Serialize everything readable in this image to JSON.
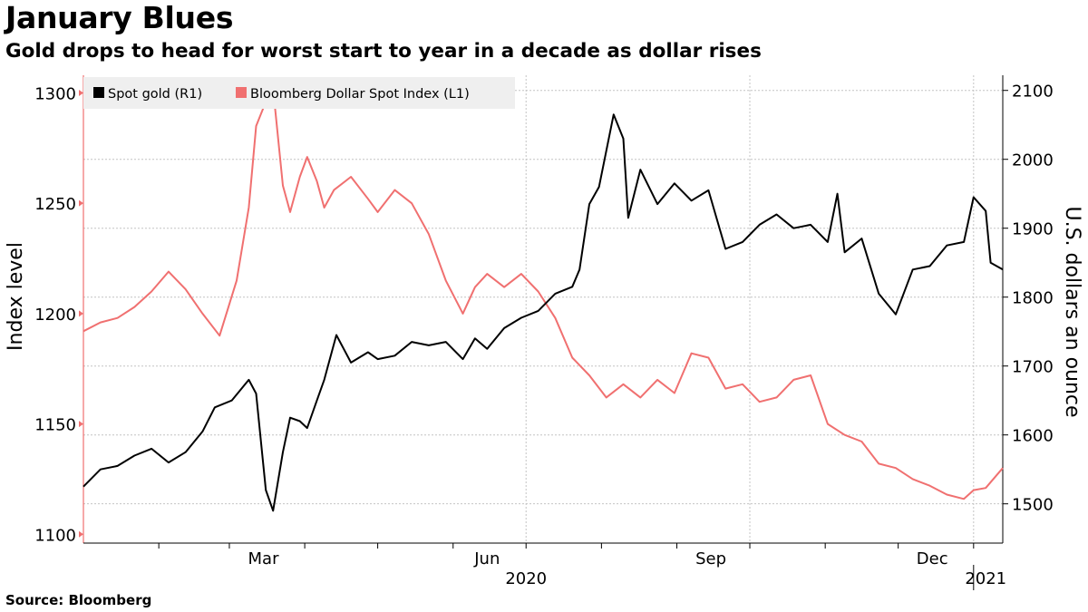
{
  "header": {
    "title": "January Blues",
    "subtitle": "Gold drops to head for worst start to year in a decade as dollar rises"
  },
  "footer": {
    "source": "Source: Bloomberg"
  },
  "chart_data": {
    "type": "line",
    "legend_position": "top-left",
    "legend": [
      {
        "name": "Spot gold (R1)",
        "color": "#000000"
      },
      {
        "name": "Bloomberg Dollar Spot Index (L1)",
        "color": "#f07070"
      }
    ],
    "ylabel_left": "Index level",
    "ylabel_right": "U.S. dollars an ounce",
    "ylim_left": [
      1096,
      1308
    ],
    "ylim_right": [
      1443,
      2122
    ],
    "yticks_left": [
      1100,
      1150,
      1200,
      1250,
      1300
    ],
    "yticks_right": [
      1500,
      1600,
      1700,
      1800,
      1900,
      2000,
      2100
    ],
    "x_range": [
      "2020-01-01",
      "2021-01-13"
    ],
    "x_tick_labels": [
      {
        "label": "Mar",
        "date": "2020-03-15"
      },
      {
        "label": "Jun",
        "date": "2020-06-15"
      },
      {
        "label": "Sep",
        "date": "2020-09-15"
      },
      {
        "label": "Dec",
        "date": "2020-12-15"
      }
    ],
    "year_labels": [
      {
        "label": "2020",
        "date": "2020-07-01"
      },
      {
        "label": "2021",
        "date": "2021-01-06"
      }
    ],
    "series": [
      {
        "name": "Bloomberg Dollar Spot Index (L1)",
        "axis": "left",
        "color": "#f07070",
        "x": [
          "2020-01-01",
          "2020-01-08",
          "2020-01-15",
          "2020-01-22",
          "2020-01-29",
          "2020-02-05",
          "2020-02-12",
          "2020-02-19",
          "2020-02-26",
          "2020-03-04",
          "2020-03-09",
          "2020-03-12",
          "2020-03-16",
          "2020-03-19",
          "2020-03-23",
          "2020-03-26",
          "2020-03-30",
          "2020-04-02",
          "2020-04-06",
          "2020-04-09",
          "2020-04-13",
          "2020-04-20",
          "2020-04-27",
          "2020-05-01",
          "2020-05-08",
          "2020-05-15",
          "2020-05-22",
          "2020-05-29",
          "2020-06-05",
          "2020-06-10",
          "2020-06-15",
          "2020-06-22",
          "2020-06-29",
          "2020-07-06",
          "2020-07-13",
          "2020-07-20",
          "2020-07-27",
          "2020-08-03",
          "2020-08-10",
          "2020-08-17",
          "2020-08-24",
          "2020-08-31",
          "2020-09-07",
          "2020-09-14",
          "2020-09-21",
          "2020-09-28",
          "2020-10-05",
          "2020-10-12",
          "2020-10-19",
          "2020-10-26",
          "2020-11-02",
          "2020-11-09",
          "2020-11-16",
          "2020-11-23",
          "2020-11-30",
          "2020-12-07",
          "2020-12-14",
          "2020-12-21",
          "2020-12-28",
          "2021-01-01",
          "2021-01-06",
          "2021-01-13"
        ],
        "values": [
          1192,
          1196,
          1198,
          1203,
          1210,
          1219,
          1211,
          1200,
          1190,
          1215,
          1248,
          1285,
          1296,
          1302,
          1258,
          1246,
          1262,
          1271,
          1260,
          1248,
          1256,
          1262,
          1252,
          1246,
          1256,
          1250,
          1236,
          1215,
          1200,
          1212,
          1218,
          1212,
          1218,
          1210,
          1198,
          1180,
          1172,
          1162,
          1168,
          1162,
          1170,
          1164,
          1182,
          1180,
          1166,
          1168,
          1160,
          1162,
          1170,
          1172,
          1150,
          1145,
          1142,
          1132,
          1130,
          1125,
          1122,
          1118,
          1116,
          1120,
          1121,
          1130
        ]
      },
      {
        "name": "Spot gold (R1)",
        "axis": "right",
        "color": "#000000",
        "x": [
          "2020-01-01",
          "2020-01-08",
          "2020-01-15",
          "2020-01-22",
          "2020-01-29",
          "2020-02-05",
          "2020-02-12",
          "2020-02-19",
          "2020-02-24",
          "2020-03-02",
          "2020-03-09",
          "2020-03-12",
          "2020-03-16",
          "2020-03-19",
          "2020-03-23",
          "2020-03-26",
          "2020-03-30",
          "2020-04-02",
          "2020-04-06",
          "2020-04-09",
          "2020-04-14",
          "2020-04-20",
          "2020-04-27",
          "2020-05-01",
          "2020-05-08",
          "2020-05-15",
          "2020-05-22",
          "2020-05-29",
          "2020-06-05",
          "2020-06-10",
          "2020-06-15",
          "2020-06-22",
          "2020-06-29",
          "2020-07-06",
          "2020-07-13",
          "2020-07-20",
          "2020-07-23",
          "2020-07-27",
          "2020-07-31",
          "2020-08-06",
          "2020-08-10",
          "2020-08-12",
          "2020-08-17",
          "2020-08-24",
          "2020-08-31",
          "2020-09-07",
          "2020-09-14",
          "2020-09-21",
          "2020-09-28",
          "2020-10-05",
          "2020-10-12",
          "2020-10-19",
          "2020-10-26",
          "2020-11-02",
          "2020-11-06",
          "2020-11-09",
          "2020-11-16",
          "2020-11-23",
          "2020-11-30",
          "2020-12-07",
          "2020-12-14",
          "2020-12-21",
          "2020-12-28",
          "2021-01-01",
          "2021-01-06",
          "2021-01-08",
          "2021-01-13"
        ],
        "values": [
          1525,
          1550,
          1555,
          1570,
          1580,
          1560,
          1575,
          1605,
          1640,
          1650,
          1680,
          1660,
          1520,
          1490,
          1575,
          1625,
          1620,
          1610,
          1650,
          1680,
          1745,
          1705,
          1720,
          1710,
          1715,
          1735,
          1730,
          1735,
          1710,
          1740,
          1725,
          1755,
          1770,
          1780,
          1805,
          1815,
          1840,
          1935,
          1960,
          2065,
          2030,
          1915,
          1985,
          1935,
          1965,
          1940,
          1955,
          1870,
          1880,
          1905,
          1920,
          1900,
          1905,
          1880,
          1950,
          1865,
          1885,
          1805,
          1775,
          1840,
          1845,
          1875,
          1880,
          1945,
          1925,
          1850,
          1840
        ]
      }
    ]
  }
}
